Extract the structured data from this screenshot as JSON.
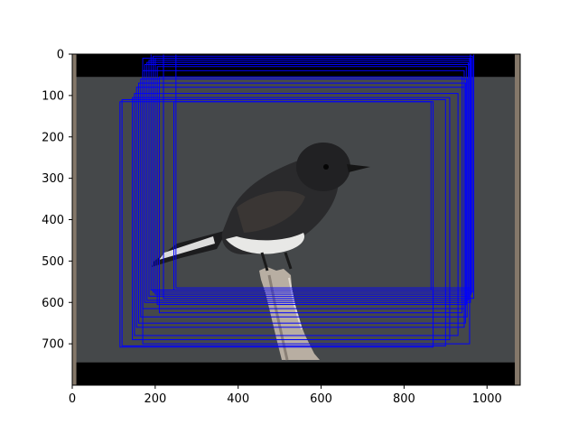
{
  "chart_data": {
    "type": "image-with-boxes",
    "x_ticks": [
      "0",
      "200",
      "400",
      "600",
      "800",
      "1000"
    ],
    "y_ticks": [
      "0",
      "100",
      "200",
      "300",
      "400",
      "500",
      "600",
      "700"
    ],
    "xlim": [
      0,
      1080
    ],
    "ylim": [
      800,
      0
    ],
    "image_extent": {
      "width": 1080,
      "height": 800
    },
    "letterbox": {
      "top_bar": [
        0,
        55
      ],
      "bottom_bar": [
        745,
        800
      ]
    },
    "side_strips": {
      "left_x": [
        0,
        10
      ],
      "right_x": [
        1067,
        1080
      ]
    },
    "box_color": "#0000ff",
    "boxes": [
      {
        "x0": 190,
        "y0": 0,
        "x1": 960,
        "y1": 570
      },
      {
        "x0": 195,
        "y0": 5,
        "x1": 965,
        "y1": 575
      },
      {
        "x0": 200,
        "y0": 10,
        "x1": 962,
        "y1": 580
      },
      {
        "x0": 185,
        "y0": 15,
        "x1": 958,
        "y1": 585
      },
      {
        "x0": 180,
        "y0": 20,
        "x1": 955,
        "y1": 595
      },
      {
        "x0": 175,
        "y0": 25,
        "x1": 960,
        "y1": 600
      },
      {
        "x0": 205,
        "y0": 30,
        "x1": 950,
        "y1": 605
      },
      {
        "x0": 170,
        "y0": 40,
        "x1": 945,
        "y1": 615
      },
      {
        "x0": 210,
        "y0": 55,
        "x1": 940,
        "y1": 625
      },
      {
        "x0": 165,
        "y0": 60,
        "x1": 952,
        "y1": 635
      },
      {
        "x0": 160,
        "y0": 70,
        "x1": 948,
        "y1": 650
      },
      {
        "x0": 155,
        "y0": 80,
        "x1": 945,
        "y1": 660
      },
      {
        "x0": 150,
        "y0": 95,
        "x1": 930,
        "y1": 680
      },
      {
        "x0": 145,
        "y0": 105,
        "x1": 910,
        "y1": 690
      },
      {
        "x0": 120,
        "y0": 110,
        "x1": 900,
        "y1": 705
      },
      {
        "x0": 115,
        "y0": 115,
        "x1": 870,
        "y1": 708
      },
      {
        "x0": 250,
        "y0": 0,
        "x1": 960,
        "y1": 565
      },
      {
        "x0": 245,
        "y0": 115,
        "x1": 865,
        "y1": 570
      },
      {
        "x0": 220,
        "y0": 0,
        "x1": 968,
        "y1": 590
      },
      {
        "x0": 170,
        "y0": 10,
        "x1": 958,
        "y1": 700
      }
    ],
    "grid": false,
    "legend": "none"
  },
  "photo": {
    "description_icon": "bird-on-branch-photo",
    "background_color": "#45484a",
    "bar_color": "#000000",
    "strip_color": "#85786a"
  }
}
